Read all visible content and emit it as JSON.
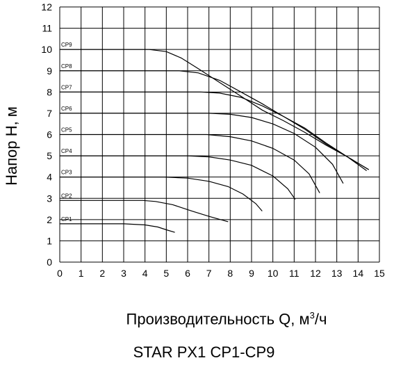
{
  "chart_data": {
    "type": "line",
    "ylabel": "Напор Н, м",
    "xlabel_main": "Производительность Q, м",
    "xlabel_sup": "3",
    "xlabel_tail": "/ч",
    "subtitle": "STAR PX1    CP1-CP9",
    "xlim": [
      0,
      15
    ],
    "ylim": [
      0,
      12
    ],
    "grid": true,
    "x_ticks": [
      "0",
      "1",
      "2",
      "3",
      "4",
      "5",
      "6",
      "7",
      "8",
      "9",
      "10",
      "11",
      "12",
      "13",
      "14",
      "15"
    ],
    "y_ticks": [
      "0",
      "1",
      "2",
      "3",
      "4",
      "5",
      "6",
      "7",
      "8",
      "9",
      "10",
      "11",
      "12"
    ],
    "series": [
      {
        "name": "CP1",
        "x": [
          0,
          3,
          4,
          4.6,
          5,
          5.4
        ],
        "y": [
          1.8,
          1.8,
          1.75,
          1.65,
          1.52,
          1.4
        ]
      },
      {
        "name": "CP2",
        "x": [
          0,
          3.9,
          4.5,
          5.3,
          6.2,
          7.0,
          7.9
        ],
        "y": [
          2.9,
          2.9,
          2.85,
          2.7,
          2.4,
          2.15,
          1.9
        ]
      },
      {
        "name": "CP3",
        "x": [
          0,
          4.9,
          6.0,
          7.0,
          7.9,
          8.6,
          9.2,
          9.5
        ],
        "y": [
          4.0,
          4.0,
          3.95,
          3.8,
          3.55,
          3.2,
          2.75,
          2.4
        ]
      },
      {
        "name": "CP4",
        "x": [
          0,
          6.0,
          7.0,
          8.0,
          9.0,
          10.0,
          10.7,
          11.05
        ],
        "y": [
          5.0,
          5.0,
          4.95,
          4.8,
          4.55,
          4.05,
          3.45,
          2.95
        ]
      },
      {
        "name": "CP5",
        "x": [
          0,
          6.9,
          8.0,
          9.0,
          10.0,
          11.0,
          11.7,
          12.2
        ],
        "y": [
          6.0,
          6.0,
          5.9,
          5.7,
          5.35,
          4.8,
          4.15,
          3.25
        ]
      },
      {
        "name": "CP6",
        "x": [
          0,
          7.0,
          8.0,
          9.0,
          10.0,
          11.0,
          12.0,
          12.8,
          13.3
        ],
        "y": [
          7.0,
          7.0,
          6.95,
          6.8,
          6.5,
          6.05,
          5.4,
          4.6,
          3.7
        ]
      },
      {
        "name": "CP7",
        "x": [
          0,
          6.6,
          7.5,
          8.5,
          9.5,
          10.5,
          11.5,
          12.5,
          13.5,
          14.4
        ],
        "y": [
          8.0,
          8.0,
          7.95,
          7.75,
          7.35,
          6.85,
          6.3,
          5.6,
          4.95,
          4.3
        ]
      },
      {
        "name": "CP8",
        "x": [
          0,
          5.6,
          6.5,
          7.5,
          8.5,
          9.5,
          10.5,
          11.5,
          12.5,
          13.5,
          14.5
        ],
        "y": [
          9.0,
          9.0,
          8.9,
          8.55,
          8.0,
          7.45,
          6.85,
          6.25,
          5.55,
          4.95,
          4.35
        ]
      },
      {
        "name": "CP9",
        "x": [
          0,
          4.2,
          5.0,
          5.7,
          6.5,
          7.5,
          8.5,
          9.5,
          10.5,
          11.5,
          12.5,
          13.5,
          14.5
        ],
        "y": [
          10.0,
          10.0,
          9.9,
          9.6,
          9.1,
          8.45,
          7.8,
          7.15,
          6.65,
          6.1,
          5.5,
          4.95,
          4.35
        ]
      }
    ]
  }
}
